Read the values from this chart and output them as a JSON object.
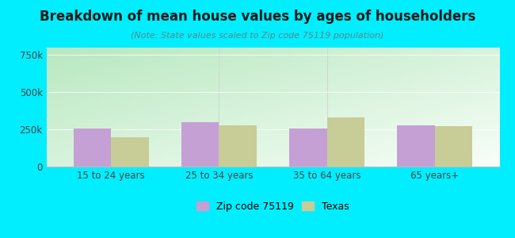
{
  "title": "Breakdown of mean house values by ages of householders",
  "subtitle": "(Note: State values scaled to Zip code 75119 population)",
  "categories": [
    "15 to 24 years",
    "25 to 34 years",
    "35 to 64 years",
    "65 years+"
  ],
  "zip_values": [
    257000,
    300000,
    255000,
    275000
  ],
  "texas_values": [
    195000,
    280000,
    330000,
    270000
  ],
  "zip_color": "#c4a0d4",
  "texas_color": "#c8cc96",
  "ylim": [
    0,
    800000
  ],
  "yticks": [
    0,
    250000,
    500000,
    750000
  ],
  "ytick_labels": [
    "0",
    "250k",
    "500k",
    "750k"
  ],
  "grad_top_left": "#b8e8c0",
  "grad_bottom_right": "#f8fef8",
  "outer_bg": "#00eeff",
  "bar_width": 0.35,
  "legend_zip": "Zip code 75119",
  "legend_texas": "Texas",
  "title_fontsize": 12,
  "subtitle_fontsize": 8,
  "tick_fontsize": 8.5
}
